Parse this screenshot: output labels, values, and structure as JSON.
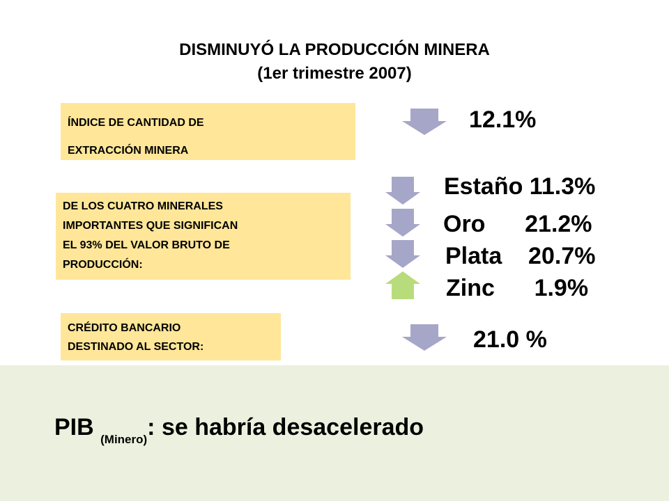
{
  "title": {
    "line1": "DISMINUYÓ  LA PRODUCCIÓN MINERA",
    "line2": "(1er trimestre 2007)"
  },
  "boxes": [
    {
      "lines": [
        "ÍNDICE DE CANTIDAD DE",
        "EXTRACCIÓN MINERA"
      ]
    },
    {
      "lines": [
        "DE LOS CUATRO MINERALES",
        "IMPORTANTES QUE SIGNIFICAN",
        "EL 93% DEL VALOR BRUTO DE",
        "PRODUCCIÓN:"
      ]
    },
    {
      "lines": [
        "CRÉDITO BANCARIO",
        "DESTINADO AL SECTOR:"
      ]
    }
  ],
  "values": {
    "index": "12.1%",
    "estano": "Estaño 11.3%",
    "oro": "Oro      21.2%",
    "plata": "Plata    20.7%",
    "zinc": "Zinc      1.9%",
    "credito": "21.0 %"
  },
  "arrows": {
    "down_color": "#a6a6c8",
    "up_color": "#b8dc7c"
  },
  "footer": {
    "pib": "PIB ",
    "sub": "(Minero)",
    "rest": ": se habría desacelerado",
    "background": "#ebf1de"
  }
}
